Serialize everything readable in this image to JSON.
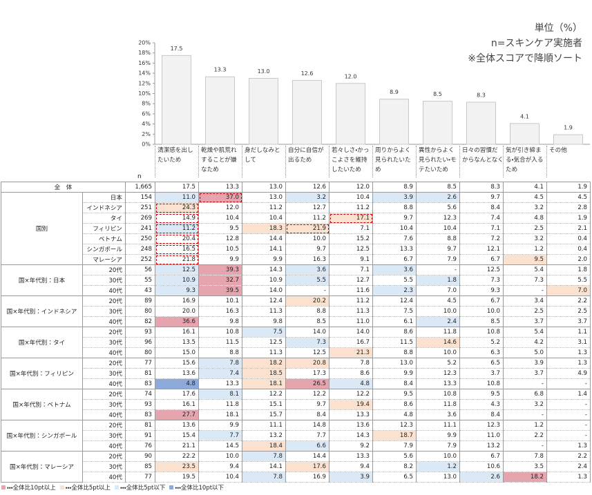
{
  "notes": [
    "単位（%）",
    "n=スキンケア実施者",
    "※全体スコアで降順ソート"
  ],
  "chart_data": {
    "type": "bar",
    "categories": [
      "清潔感を出したいため",
      "乾燥や肌荒れすることが嫌なため",
      "身だしなみとして",
      "自分に自信が出るため",
      "若々しさ・かっこよさを維持したいため",
      "周りからよく見られたいため",
      "異性からよく見られたい・モテたいため",
      "日々の習慣だからなんとなく",
      "気が引き締まる・気合が入るため",
      "その他"
    ],
    "values": [
      17.5,
      13.3,
      13.0,
      12.6,
      12.0,
      8.9,
      8.5,
      8.3,
      4.1,
      1.9
    ],
    "value_labels": [
      "17.5",
      "13.3",
      "13.0",
      "12.6",
      "12.0",
      "8.9",
      "8.5",
      "8.3",
      "4.1",
      "1.9"
    ],
    "color": "#f2f2f2",
    "edge_color": "#c8c8c8",
    "ylim": [
      0,
      20
    ],
    "yticks": [
      {
        "value": 0,
        "label": "0%"
      },
      {
        "value": 2,
        "label": "2%"
      },
      {
        "value": 4,
        "label": "4%"
      },
      {
        "value": 6,
        "label": "6%"
      },
      {
        "value": 8,
        "label": "8%"
      },
      {
        "value": 10,
        "label": "10%"
      },
      {
        "value": 12,
        "label": "12%"
      },
      {
        "value": 14,
        "label": "14%"
      },
      {
        "value": 16,
        "label": "16%"
      },
      {
        "value": 18,
        "label": "18%"
      },
      {
        "value": 20,
        "label": "20%"
      }
    ]
  },
  "table": {
    "n_label": "n",
    "box_color": "#c00000",
    "overall": {
      "label": "全　体",
      "n": "1,665",
      "values": [
        "17.5",
        "13.3",
        "13.0",
        "12.6",
        "12.0",
        "8.9",
        "8.5",
        "8.3",
        "4.1",
        "1.9"
      ]
    },
    "groups": [
      {
        "label": "国別",
        "rows": [
          {
            "label": "日本",
            "n": "154",
            "values": [
              "11.0",
              "37.0",
              "13.0",
              "3.2",
              "10.4",
              "3.9",
              "2.6",
              "9.7",
              "4.5",
              "4.5"
            ],
            "shade": [
              2,
              0,
              null,
              2,
              null,
              2,
              2,
              null,
              null,
              null
            ],
            "boxed": [
              1
            ]
          },
          {
            "label": "インドネシア",
            "n": "251",
            "values": [
              "24.3",
              "12.0",
              "11.2",
              "12.7",
              "11.2",
              "8.8",
              "5.6",
              "8.4",
              "3.2",
              "2.8"
            ],
            "shade": [
              1,
              null,
              null,
              null,
              null,
              null,
              null,
              null,
              null,
              null
            ],
            "boxed": [
              0
            ]
          },
          {
            "label": "タイ",
            "n": "269",
            "values": [
              "14.9",
              "10.4",
              "10.4",
              "11.2",
              "17.1",
              "9.7",
              "12.3",
              "7.4",
              "4.8",
              "1.9"
            ],
            "shade": [
              null,
              null,
              null,
              null,
              1,
              null,
              null,
              null,
              null,
              null
            ],
            "boxed": [
              0,
              4
            ]
          },
          {
            "label": "フィリピン",
            "n": "241",
            "values": [
              "11.2",
              "9.5",
              "18.3",
              "21.9",
              "7.1",
              "10.4",
              "10.4",
              "7.1",
              "2.5",
              "2.1"
            ],
            "shade": [
              2,
              null,
              1,
              1,
              null,
              null,
              null,
              null,
              null,
              null
            ],
            "boxed": [
              0,
              3
            ]
          },
          {
            "label": "ベトナム",
            "n": "250",
            "values": [
              "20.4",
              "12.8",
              "14.4",
              "10.0",
              "15.2",
              "7.6",
              "8.8",
              "7.2",
              "3.2",
              "0.4"
            ],
            "shade": [
              null,
              null,
              null,
              null,
              null,
              null,
              null,
              null,
              null,
              null
            ],
            "boxed": [
              0
            ]
          },
          {
            "label": "シンガポール",
            "n": "248",
            "values": [
              "16.5",
              "10.5",
              "14.1",
              "9.7",
              "12.5",
              "13.3",
              "9.7",
              "12.1",
              "1.2",
              "0.4"
            ],
            "shade": [
              null,
              null,
              null,
              null,
              null,
              null,
              null,
              null,
              null,
              null
            ],
            "boxed": [
              0
            ]
          },
          {
            "label": "マレーシア",
            "n": "252",
            "values": [
              "21.8",
              "9.9",
              "9.9",
              "16.3",
              "9.1",
              "6.7",
              "7.9",
              "6.7",
              "9.5",
              "2.0"
            ],
            "shade": [
              null,
              null,
              null,
              null,
              null,
              null,
              null,
              null,
              1,
              null
            ],
            "boxed": [
              0
            ]
          }
        ]
      },
      {
        "label": "国×年代別：日本",
        "rows": [
          {
            "label": "20代",
            "n": "56",
            "values": [
              "12.5",
              "39.3",
              "14.3",
              "3.6",
              "7.1",
              "3.6",
              "-",
              "12.5",
              "5.4",
              "1.8"
            ],
            "shade": [
              2,
              0,
              null,
              2,
              null,
              2,
              null,
              null,
              null,
              null
            ],
            "boxed": []
          },
          {
            "label": "30代",
            "n": "55",
            "values": [
              "10.9",
              "32.7",
              "10.9",
              "5.5",
              "12.7",
              "5.5",
              "1.8",
              "7.3",
              "7.3",
              "5.5"
            ],
            "shade": [
              2,
              0,
              null,
              2,
              null,
              null,
              2,
              null,
              null,
              null
            ],
            "boxed": []
          },
          {
            "label": "40代",
            "n": "43",
            "values": [
              "9.3",
              "39.5",
              "14.0",
              "-",
              "11.6",
              "2.3",
              "7.0",
              "9.3",
              "-",
              "7.0"
            ],
            "shade": [
              2,
              0,
              null,
              null,
              null,
              2,
              null,
              null,
              null,
              1
            ],
            "boxed": []
          }
        ]
      },
      {
        "label": "国×年代別：インドネシア",
        "rows": [
          {
            "label": "20代",
            "n": "89",
            "values": [
              "16.9",
              "10.1",
              "12.4",
              "20.2",
              "11.2",
              "12.4",
              "4.5",
              "6.7",
              "3.4",
              "2.2"
            ],
            "shade": [
              null,
              null,
              null,
              1,
              null,
              null,
              null,
              null,
              null,
              null
            ],
            "boxed": []
          },
          {
            "label": "30代",
            "n": "80",
            "values": [
              "20.0",
              "16.3",
              "11.3",
              "8.8",
              "11.3",
              "7.5",
              "10.0",
              "10.0",
              "2.5",
              "2.5"
            ],
            "shade": [
              null,
              null,
              null,
              null,
              null,
              null,
              null,
              null,
              null,
              null
            ],
            "boxed": []
          },
          {
            "label": "40代",
            "n": "82",
            "values": [
              "36.6",
              "9.8",
              "9.8",
              "8.5",
              "11.0",
              "6.1",
              "2.4",
              "8.5",
              "3.7",
              "3.7"
            ],
            "shade": [
              0,
              null,
              null,
              null,
              null,
              null,
              2,
              null,
              null,
              null
            ],
            "boxed": []
          }
        ]
      },
      {
        "label": "国×年代別：タイ",
        "rows": [
          {
            "label": "20代",
            "n": "93",
            "values": [
              "16.1",
              "10.8",
              "7.5",
              "14.0",
              "14.0",
              "8.6",
              "11.8",
              "10.8",
              "5.4",
              "1.1"
            ],
            "shade": [
              null,
              null,
              2,
              null,
              null,
              null,
              null,
              null,
              null,
              null
            ],
            "boxed": []
          },
          {
            "label": "30代",
            "n": "96",
            "values": [
              "13.5",
              "11.5",
              "12.5",
              "7.3",
              "16.7",
              "11.5",
              "14.6",
              "5.2",
              "4.2",
              "3.1"
            ],
            "shade": [
              null,
              null,
              null,
              2,
              null,
              null,
              1,
              null,
              null,
              null
            ],
            "boxed": []
          },
          {
            "label": "40代",
            "n": "80",
            "values": [
              "15.0",
              "8.8",
              "11.3",
              "12.5",
              "21.3",
              "8.8",
              "10.0",
              "6.3",
              "5.0",
              "1.3"
            ],
            "shade": [
              null,
              null,
              null,
              null,
              1,
              null,
              null,
              null,
              null,
              null
            ],
            "boxed": []
          }
        ]
      },
      {
        "label": "国×年代別：フィリピン",
        "rows": [
          {
            "label": "20代",
            "n": "77",
            "values": [
              "15.6",
              "7.8",
              "18.2",
              "20.8",
              "7.8",
              "13.0",
              "5.2",
              "6.5",
              "3.9",
              "1.3"
            ],
            "shade": [
              null,
              2,
              1,
              1,
              null,
              null,
              null,
              null,
              null,
              null
            ],
            "boxed": []
          },
          {
            "label": "30代",
            "n": "81",
            "values": [
              "13.6",
              "7.4",
              "18.5",
              "17.3",
              "8.6",
              "9.9",
              "12.3",
              "3.7",
              "3.7",
              "4.9"
            ],
            "shade": [
              null,
              2,
              1,
              null,
              null,
              null,
              null,
              null,
              null,
              null
            ],
            "boxed": []
          },
          {
            "label": "40代",
            "n": "83",
            "values": [
              "4.8",
              "13.3",
              "18.1",
              "26.5",
              "4.8",
              "8.4",
              "13.3",
              "10.8",
              "-",
              "-"
            ],
            "shade": [
              3,
              null,
              1,
              0,
              2,
              null,
              null,
              null,
              null,
              null
            ],
            "boxed": []
          }
        ]
      },
      {
        "label": "国×年代別：ベトナム",
        "rows": [
          {
            "label": "20代",
            "n": "74",
            "values": [
              "17.6",
              "8.1",
              "12.2",
              "12.2",
              "12.2",
              "9.5",
              "10.8",
              "9.5",
              "6.8",
              "1.4"
            ],
            "shade": [
              null,
              2,
              null,
              null,
              null,
              null,
              null,
              null,
              null,
              null
            ],
            "boxed": []
          },
          {
            "label": "30代",
            "n": "93",
            "values": [
              "16.1",
              "11.8",
              "15.1",
              "9.7",
              "19.4",
              "8.6",
              "11.8",
              "4.3",
              "3.2",
              "-"
            ],
            "shade": [
              null,
              null,
              null,
              null,
              1,
              null,
              null,
              null,
              null,
              null
            ],
            "boxed": []
          },
          {
            "label": "40代",
            "n": "83",
            "values": [
              "27.7",
              "18.1",
              "15.7",
              "8.4",
              "13.3",
              "4.8",
              "3.6",
              "8.4",
              "-",
              "-"
            ],
            "shade": [
              0,
              null,
              null,
              null,
              null,
              null,
              null,
              null,
              null,
              null
            ],
            "boxed": []
          }
        ]
      },
      {
        "label": "国×年代別：シンガポール",
        "rows": [
          {
            "label": "20代",
            "n": "81",
            "values": [
              "13.6",
              "9.9",
              "11.1",
              "14.8",
              "13.6",
              "12.3",
              "11.1",
              "12.3",
              "1.2",
              "-"
            ],
            "shade": [
              null,
              null,
              null,
              null,
              null,
              null,
              null,
              null,
              null,
              null
            ],
            "boxed": []
          },
          {
            "label": "30代",
            "n": "91",
            "values": [
              "15.4",
              "7.7",
              "13.2",
              "7.7",
              "14.3",
              "18.7",
              "9.9",
              "11.0",
              "2.2",
              "-"
            ],
            "shade": [
              null,
              2,
              null,
              null,
              null,
              1,
              null,
              null,
              null,
              null
            ],
            "boxed": []
          },
          {
            "label": "40代",
            "n": "76",
            "values": [
              "21.1",
              "14.5",
              "18.4",
              "6.6",
              "9.2",
              "7.9",
              "7.9",
              "13.2",
              "-",
              "1.3"
            ],
            "shade": [
              null,
              null,
              1,
              2,
              null,
              null,
              null,
              null,
              null,
              null
            ],
            "boxed": []
          }
        ]
      },
      {
        "label": "国×年代別：マレーシア",
        "rows": [
          {
            "label": "20代",
            "n": "90",
            "values": [
              "22.2",
              "10.0",
              "7.8",
              "14.4",
              "13.3",
              "5.6",
              "10.0",
              "6.7",
              "7.8",
              "2.2"
            ],
            "shade": [
              null,
              null,
              2,
              null,
              null,
              null,
              null,
              null,
              null,
              null
            ],
            "boxed": []
          },
          {
            "label": "30代",
            "n": "85",
            "values": [
              "23.5",
              "9.4",
              "14.1",
              "17.6",
              "9.4",
              "8.2",
              "1.2",
              "10.6",
              "3.5",
              "2.4"
            ],
            "shade": [
              1,
              null,
              null,
              1,
              null,
              null,
              2,
              null,
              null,
              null
            ],
            "boxed": []
          },
          {
            "label": "40代",
            "n": "77",
            "values": [
              "19.5",
              "10.4",
              "7.8",
              "16.9",
              "3.9",
              "6.5",
              "13.0",
              "2.6",
              "18.2",
              "1.3"
            ],
            "shade": [
              null,
              null,
              2,
              null,
              2,
              null,
              null,
              2,
              0,
              null
            ],
            "boxed": []
          }
        ]
      }
    ]
  },
  "legend": [
    {
      "name": "・・・全体比10pt以上",
      "color": "#e6a4ae"
    },
    {
      "name": "・・・全体比5pt以上",
      "color": "#fbe2d0"
    },
    {
      "name": "・・・全体比5pt以下",
      "color": "#dbe8f5"
    },
    {
      "name": "・・・全体比10pt以下",
      "color": "#8eaadb"
    }
  ]
}
